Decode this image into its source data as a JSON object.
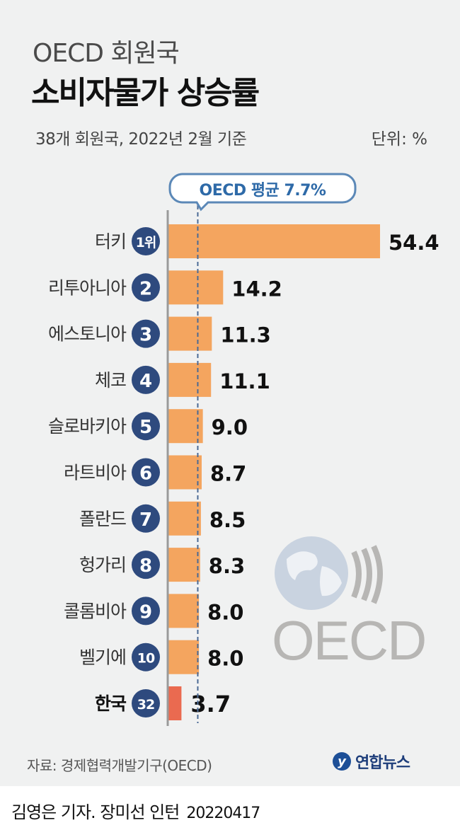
{
  "title_line1": "OECD 회원국",
  "title_line2": "소비자물가 상승률",
  "subtitle": "38개 회원국, 2022년 2월 기준",
  "unit": "단위: %",
  "average_label": "OECD 평균 7.7%",
  "logo_text": "OECD",
  "source": "자료: 경제협력개발기구(OECD)",
  "brand": "연합뉴스",
  "brand_mark": "y",
  "credit": "김영은 기자. 장미선 인턴",
  "credit_date": "20220417",
  "colors": {
    "bar": "#f4a55f",
    "highlight_bar": "#ea6a50",
    "rank_badge": "#2e4a7e",
    "average_line": "#4b6a95"
  },
  "chart_data": {
    "type": "bar",
    "orientation": "horizontal",
    "average": 7.7,
    "categories": [
      "터키",
      "리투아니아",
      "에스토니아",
      "체코",
      "슬로바키아",
      "라트비아",
      "폴란드",
      "헝가리",
      "콜롬비아",
      "벨기에",
      "한국"
    ],
    "ranks": [
      "1위",
      "2",
      "3",
      "4",
      "5",
      "6",
      "7",
      "8",
      "9",
      "10",
      "32"
    ],
    "values": [
      54.4,
      14.2,
      11.3,
      11.1,
      9.0,
      8.7,
      8.5,
      8.3,
      8.0,
      8.0,
      3.7
    ],
    "value_labels": [
      "54.4",
      "14.2",
      "11.3",
      "11.1",
      "9.0",
      "8.7",
      "8.5",
      "8.3",
      "8.0",
      "8.0",
      "3.7"
    ],
    "highlight": "한국"
  }
}
